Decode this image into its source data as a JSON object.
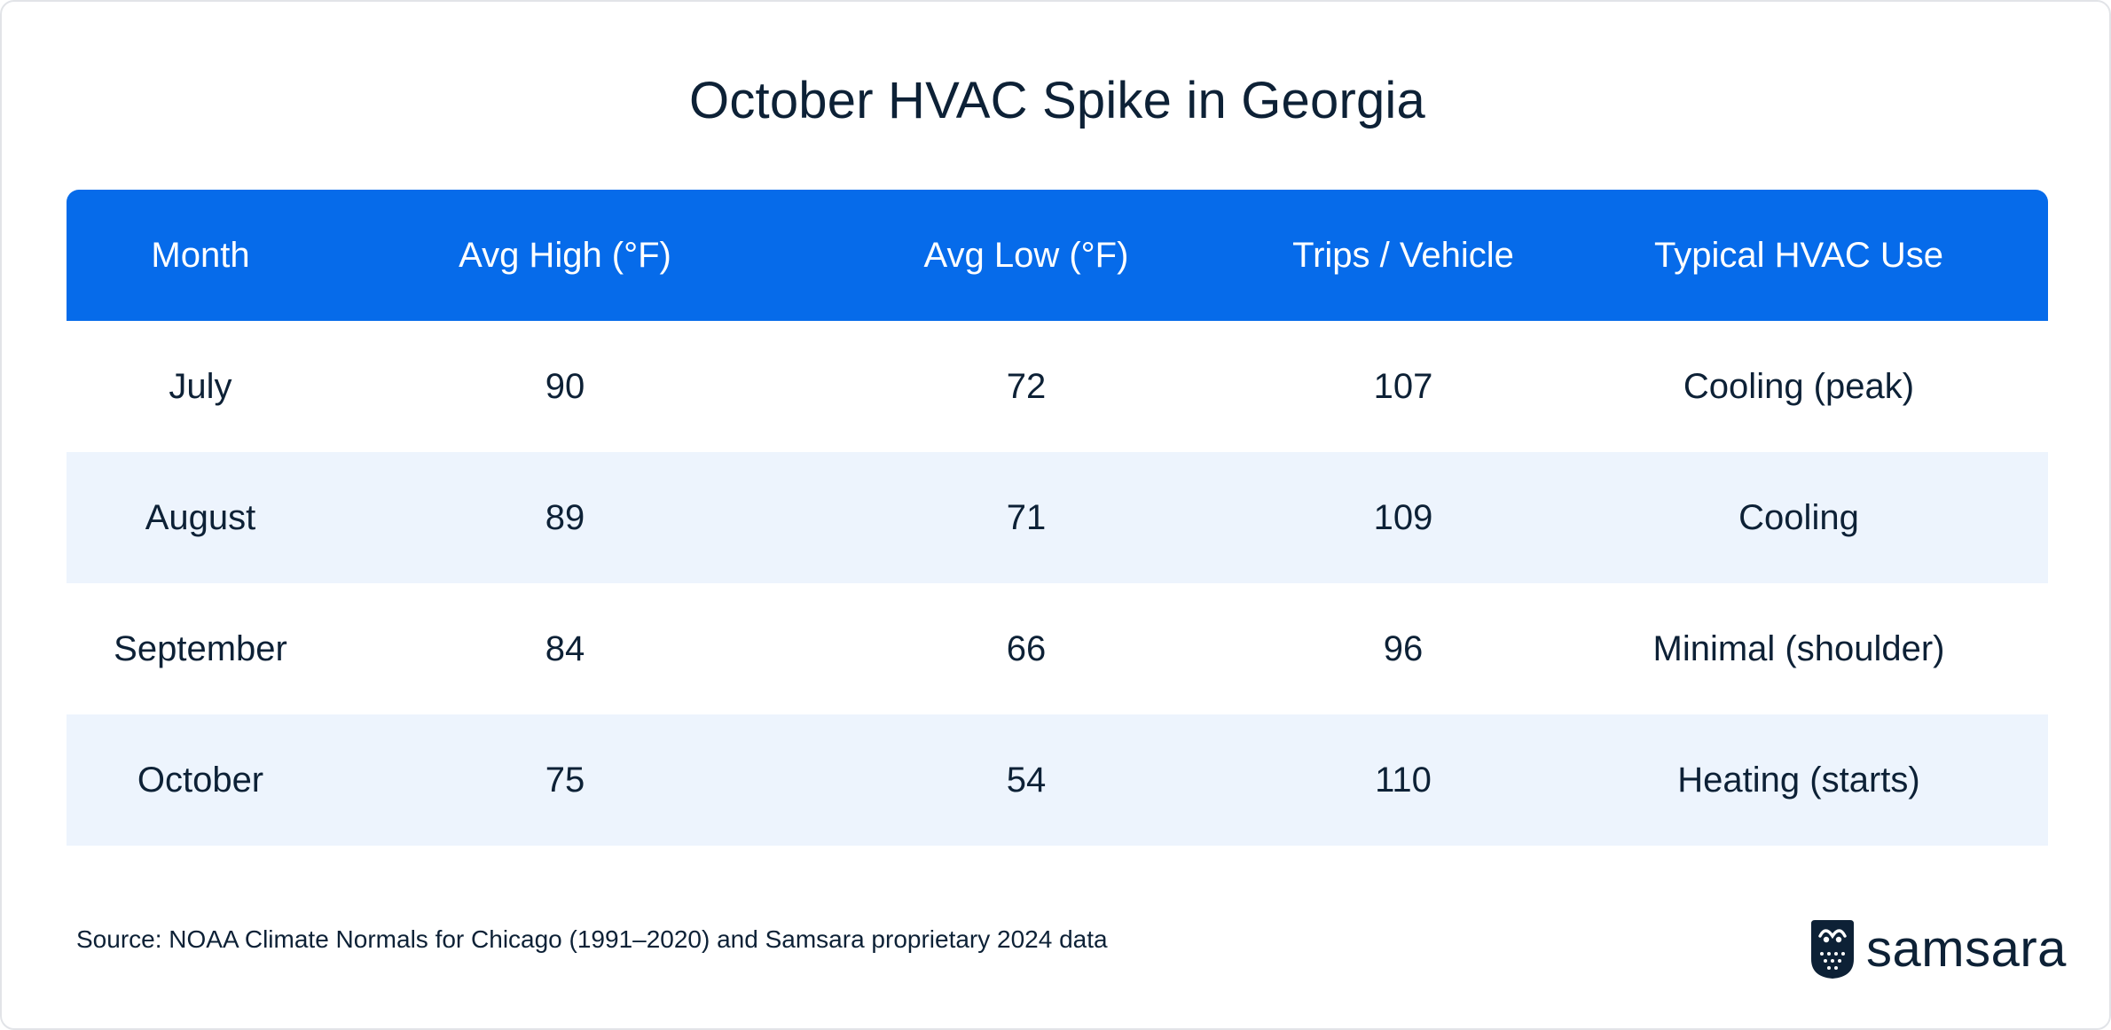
{
  "title": "October HVAC Spike in Georgia",
  "columns": [
    "Month",
    "Avg High (°F)",
    "Avg Low (°F)",
    "Trips / Vehicle",
    "Typical HVAC Use"
  ],
  "rows": [
    [
      "July",
      "90",
      "72",
      "107",
      "Cooling (peak)"
    ],
    [
      "August",
      "89",
      "71",
      "109",
      "Cooling"
    ],
    [
      "September",
      "84",
      "66",
      "96",
      "Minimal (shoulder)"
    ],
    [
      "October",
      "75",
      "54",
      "110",
      "Heating (starts)"
    ]
  ],
  "source": "Source: NOAA Climate Normals for Chicago (1991–2020) and Samsara proprietary 2024 data",
  "brand": {
    "name": "samsara",
    "logo_icon": "samsara-owl-logo-icon"
  },
  "colors": {
    "header_bg": "#066bea",
    "alt_row_bg": "#edf4fd",
    "text": "#0d2136"
  },
  "chart_data": {
    "type": "table",
    "title": "October HVAC Spike in Georgia",
    "columns": [
      "Month",
      "Avg High (°F)",
      "Avg Low (°F)",
      "Trips / Vehicle",
      "Typical HVAC Use"
    ],
    "rows": [
      [
        "July",
        90,
        72,
        107,
        "Cooling (peak)"
      ],
      [
        "August",
        89,
        71,
        109,
        "Cooling"
      ],
      [
        "September",
        84,
        66,
        96,
        "Minimal (shoulder)"
      ],
      [
        "October",
        75,
        54,
        110,
        "Heating (starts)"
      ]
    ]
  }
}
